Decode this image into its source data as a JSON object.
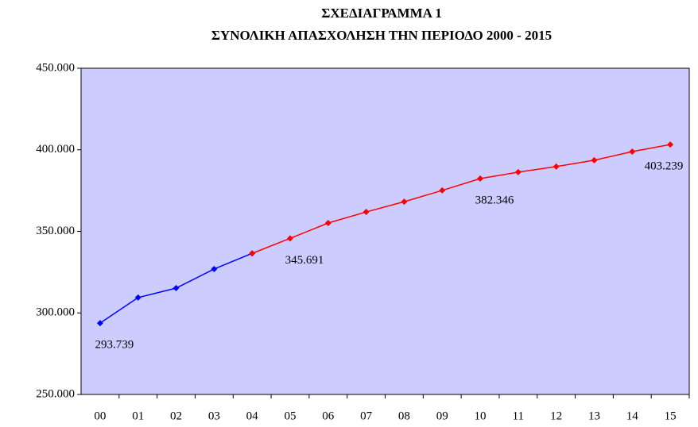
{
  "chart_data": {
    "type": "line",
    "title": "ΣΧΕΔΙΑΓΡΑΜΜΑ 1",
    "subtitle": "ΣΥΝΟΛΙΚΗ ΑΠΑΣΧΟΛΗΣΗ ΤΗΝ ΠΕΡΙΟΔΟ 2000 - 2015",
    "categories": [
      "00",
      "01",
      "02",
      "03",
      "04",
      "05",
      "06",
      "07",
      "08",
      "09",
      "10",
      "11",
      "12",
      "13",
      "14",
      "15"
    ],
    "series": [
      {
        "color": "#0000ff",
        "values": [
          293739,
          309400,
          315200,
          326900,
          336500,
          null,
          null,
          null,
          null,
          null,
          null,
          null,
          null,
          null,
          null,
          null
        ],
        "value_labels": [
          "293.739",
          null,
          null,
          null,
          null,
          null,
          null,
          null,
          null,
          null,
          null,
          null,
          null,
          null,
          null,
          null
        ]
      },
      {
        "color": "#ff0000",
        "values": [
          null,
          null,
          null,
          null,
          336500,
          345691,
          355100,
          361900,
          368200,
          375100,
          382346,
          386300,
          389700,
          393600,
          398900,
          403239
        ],
        "value_labels": [
          null,
          null,
          null,
          null,
          null,
          "345.691",
          null,
          null,
          null,
          null,
          "382.346",
          null,
          null,
          null,
          null,
          "403.239"
        ]
      }
    ],
    "ylim": [
      250000,
      450000
    ],
    "yticks": [
      {
        "value": 250000,
        "label": "250.000"
      },
      {
        "value": 300000,
        "label": "300.000"
      },
      {
        "value": 350000,
        "label": "350.000"
      },
      {
        "value": 400000,
        "label": "400.000"
      },
      {
        "value": 450000,
        "label": "450.000"
      }
    ],
    "plot_background": "#ccccff"
  }
}
